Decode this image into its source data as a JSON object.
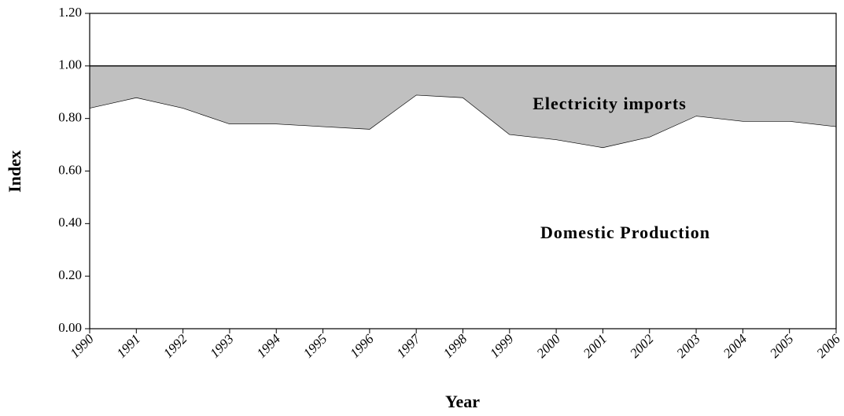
{
  "chart_data": {
    "type": "stacked_area",
    "x_label": "Year",
    "y_label": "Index",
    "categories": [
      "1990",
      "1991",
      "1992",
      "1993",
      "1994",
      "1995",
      "1996",
      "1997",
      "1998",
      "1999",
      "2000",
      "2001",
      "2002",
      "2003",
      "2004",
      "2005",
      "2006"
    ],
    "series": [
      {
        "name": "Domestic Production",
        "color": "#ffffff",
        "values": [
          0.84,
          0.88,
          0.84,
          0.78,
          0.78,
          0.77,
          0.76,
          0.89,
          0.88,
          0.74,
          0.72,
          0.69,
          0.73,
          0.81,
          0.79,
          0.79,
          0.77
        ]
      },
      {
        "name": "Electricity imports",
        "color": "#c0c0c0",
        "values": [
          0.16,
          0.12,
          0.16,
          0.22,
          0.22,
          0.23,
          0.24,
          0.11,
          0.12,
          0.26,
          0.28,
          0.31,
          0.27,
          0.19,
          0.21,
          0.21,
          0.23
        ]
      }
    ],
    "ylim": [
      0,
      1.2
    ],
    "yticks": [
      {
        "value": 0,
        "label": "0.00"
      },
      {
        "value": 0.2,
        "label": "0.20"
      },
      {
        "value": 0.4,
        "label": "0.40"
      },
      {
        "value": 0.6,
        "label": "0.60"
      },
      {
        "value": 0.8,
        "label": "0.80"
      },
      {
        "value": 1,
        "label": "1.00"
      },
      {
        "value": 1.2,
        "label": "1.20"
      }
    ],
    "grid": false
  }
}
